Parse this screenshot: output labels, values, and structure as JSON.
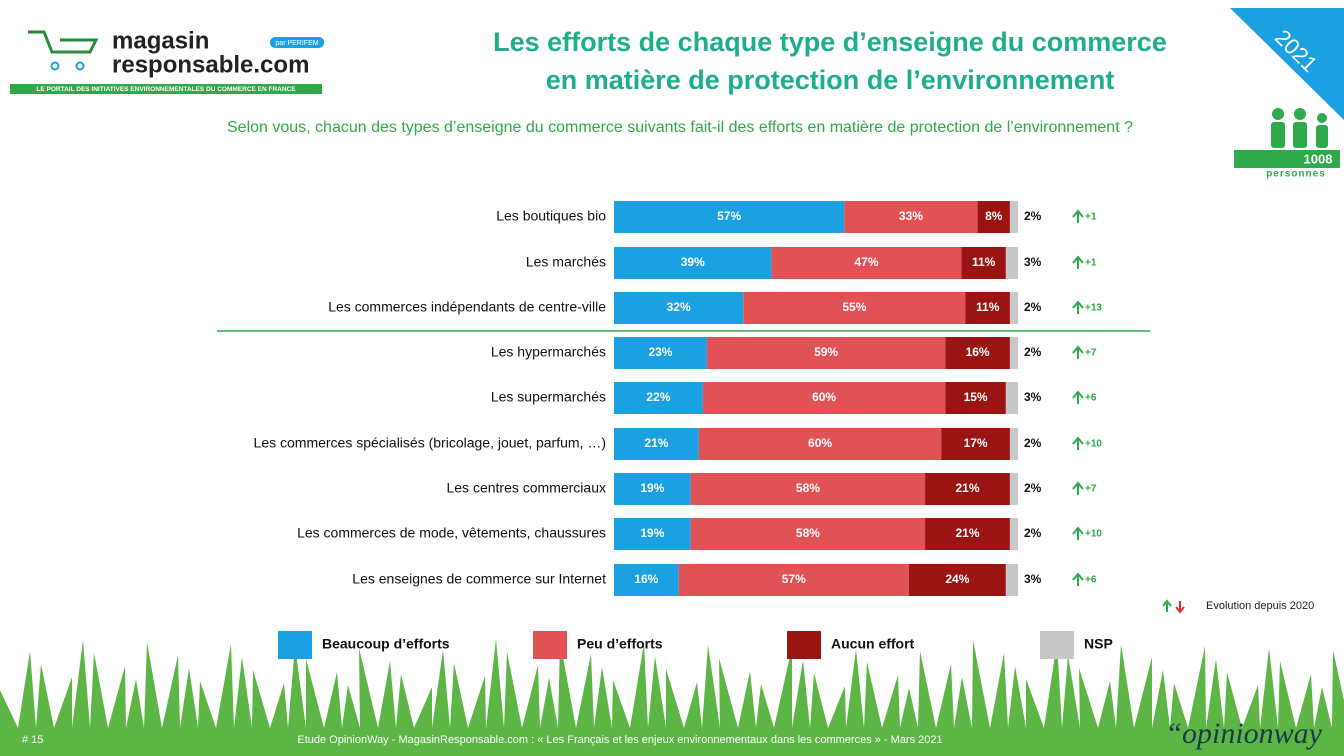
{
  "header": {
    "logo_line1": "magasin",
    "logo_line2": "responsable.com",
    "logo_badge": "par PERIFEM",
    "logo_tagline": "LE PORTAIL DES INITIATIVES ENVIRONNEMENTALES DU COMMERCE EN FRANCE",
    "year": "2021",
    "sample_size": "1008",
    "sample_unit": "personnes"
  },
  "chart_data": {
    "type": "stacked-bar-horizontal",
    "title": [
      "Les efforts de chaque type d’enseigne du commerce",
      "en matière de protection de l’environnement"
    ],
    "subtitle": "Selon vous, chacun des types d’enseigne du commerce suivants fait-il des efforts en matière de protection de l’environnement ?",
    "categories": [
      "Les boutiques bio",
      "Les marchés",
      "Les commerces indépendants de centre-ville",
      "Les hypermarchés",
      "Les supermarchés",
      "Les commerces spécialisés (bricolage, jouet, parfum, …)",
      "Les centres commerciaux",
      "Les commerces de mode, vêtements, chaussures",
      "Les enseignes de commerce sur Internet"
    ],
    "xlim": [
      0,
      100
    ],
    "series": [
      {
        "name": "Beaucoup d’efforts",
        "color": "#1ba1e2",
        "values": [
          57,
          39,
          32,
          23,
          22,
          21,
          19,
          19,
          16
        ],
        "value_labels": [
          "57%",
          "39%",
          "32%",
          "23%",
          "22%",
          "21%",
          "19%",
          "19%",
          "16%"
        ]
      },
      {
        "name": "Peu d’efforts",
        "color": "#e05256",
        "values": [
          33,
          47,
          55,
          59,
          60,
          60,
          58,
          58,
          57
        ],
        "value_labels": [
          "33%",
          "47%",
          "55%",
          "59%",
          "60%",
          "60%",
          "58%",
          "58%",
          "57%"
        ]
      },
      {
        "name": "Aucun effort",
        "color": "#9b1414",
        "values": [
          8,
          11,
          11,
          16,
          15,
          17,
          21,
          21,
          24
        ],
        "value_labels": [
          "8%",
          "11%",
          "11%",
          "16%",
          "15%",
          "17%",
          "21%",
          "21%",
          "24%"
        ]
      },
      {
        "name": "NSP",
        "color": "#c8c8c8",
        "values": [
          2,
          3,
          2,
          2,
          3,
          2,
          2,
          2,
          3
        ],
        "value_labels": [
          "2%",
          "3%",
          "2%",
          "2%",
          "3%",
          "2%",
          "2%",
          "2%",
          "3%"
        ]
      }
    ],
    "evolution": [
      "+1",
      "+1",
      "+13",
      "+7",
      "+6",
      "+10",
      "+7",
      "+10",
      "+6"
    ],
    "evolution_legend": "Evolution depuis 2020"
  },
  "footer": {
    "page": "# 15",
    "source": "Etude OpinionWay - MagasinResponsable.com : « Les Français et les enjeux environnementaux dans les commerces » - Mars 2021",
    "brand": "“opinionway"
  }
}
